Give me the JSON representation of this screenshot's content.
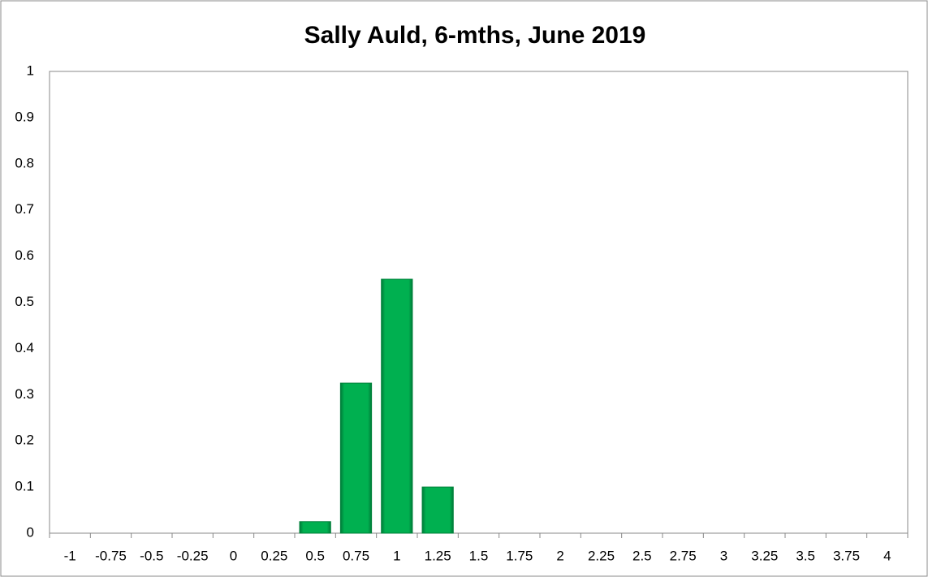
{
  "chart_data": {
    "type": "bar",
    "title": "Sally Auld, 6-mths, June 2019",
    "categories": [
      "-1",
      "-0.75",
      "-0.5",
      "-0.25",
      "0",
      "0.25",
      "0.5",
      "0.75",
      "1",
      "1.25",
      "1.5",
      "1.75",
      "2",
      "2.25",
      "2.5",
      "2.75",
      "3",
      "3.25",
      "3.5",
      "3.75",
      "4"
    ],
    "values": [
      0,
      0,
      0,
      0,
      0,
      0,
      0.025,
      0.325,
      0.55,
      0.1,
      0,
      0,
      0,
      0,
      0,
      0,
      0,
      0,
      0,
      0,
      0
    ],
    "color": "#00b050",
    "ylim": [
      0,
      1
    ],
    "yticks": [
      0,
      0.1,
      0.2,
      0.3,
      0.4,
      0.5,
      0.6,
      0.7,
      0.8,
      0.9,
      1
    ],
    "grid": false
  }
}
